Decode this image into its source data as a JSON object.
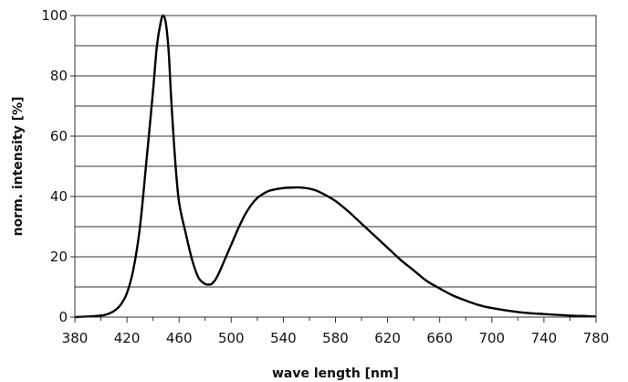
{
  "chart_data": {
    "type": "line",
    "xlabel": "wave length [nm]",
    "ylabel": "norm. intensity [%]",
    "xlim": [
      380,
      780
    ],
    "ylim": [
      0,
      100
    ],
    "x_ticks": [
      "380",
      "420",
      "460",
      "500",
      "540",
      "580",
      "620",
      "660",
      "700",
      "740",
      "780"
    ],
    "y_ticks": [
      "0",
      "20",
      "40",
      "60",
      "80",
      "100"
    ],
    "grid": "horizontal",
    "series": [
      {
        "x": [
          380,
          390,
          400,
          405,
          410,
          415,
          420,
          425,
          430,
          435,
          440,
          443,
          446,
          448,
          450,
          452,
          454,
          457,
          460,
          465,
          470,
          475,
          480,
          483,
          485,
          488,
          491,
          495,
          500,
          505,
          510,
          515,
          520,
          525,
          530,
          540,
          550,
          555,
          560,
          565,
          570,
          580,
          590,
          600,
          610,
          620,
          630,
          640,
          650,
          660,
          670,
          680,
          690,
          700,
          720,
          740,
          760,
          780
        ],
        "y": [
          0,
          0.2,
          0.5,
          1,
          2,
          4,
          8,
          16,
          30,
          52,
          75,
          90,
          98,
          100,
          97,
          88,
          72,
          52,
          38,
          28,
          19,
          13,
          11,
          10.8,
          11,
          12.5,
          15,
          19,
          24,
          29,
          33.5,
          37,
          39.5,
          41,
          42,
          42.8,
          43,
          42.9,
          42.6,
          42,
          41,
          38.5,
          35,
          31,
          27,
          23,
          19,
          15.5,
          12,
          9.5,
          7.2,
          5.5,
          4,
          3,
          1.7,
          1,
          0.5,
          0.2
        ]
      }
    ],
    "line_color": "#000000",
    "grid_color": "#333333"
  }
}
